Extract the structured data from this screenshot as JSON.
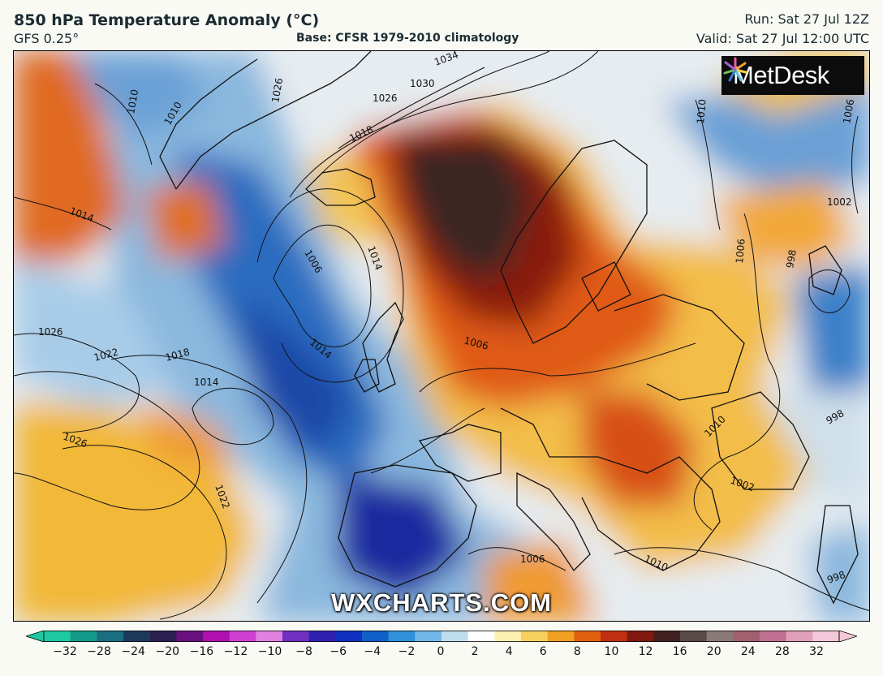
{
  "header": {
    "title": "850 hPa Temperature Anomaly (°C)",
    "model": "GFS 0.25°",
    "base": "Base: CFSR 1979-2010 climatology",
    "run": "Run: Sat 27 Jul 12Z",
    "valid": "Valid: Sat 27 Jul 12:00 UTC"
  },
  "logo": {
    "text": "MetDesk",
    "icon": "metdesk-star-icon"
  },
  "watermark": "WXCHARTS.COM",
  "isobar_labels": [
    "1034",
    "1030",
    "1026",
    "1018",
    "1010",
    "1006",
    "1014",
    "1026",
    "1010",
    "1006",
    "1010",
    "1002",
    "998",
    "1006",
    "1026",
    "1022",
    "1018",
    "1014",
    "1014",
    "1006",
    "1026",
    "1022",
    "1010",
    "1002",
    "1006",
    "1010",
    "998",
    "998",
    "1014"
  ],
  "colorbar": {
    "ticks": [
      "−32",
      "−28",
      "−24",
      "−20",
      "−16",
      "−12",
      "−10",
      "−8",
      "−6",
      "−4",
      "−2",
      "0",
      "2",
      "4",
      "6",
      "8",
      "10",
      "12",
      "16",
      "20",
      "24",
      "28",
      "32"
    ],
    "colors": [
      "#1ec8a0",
      "#159a8a",
      "#1a6e80",
      "#1e3a5a",
      "#2a2050",
      "#6a1080",
      "#b010b0",
      "#d040d0",
      "#e080e0",
      "#7030c0",
      "#3020b0",
      "#1030c0",
      "#1060c8",
      "#3090d8",
      "#70b8e8",
      "#c0dcef",
      "#ffffff",
      "#fcefb0",
      "#f8d060",
      "#f0a020",
      "#e06010",
      "#c03010",
      "#801810",
      "#402020",
      "#5a4a4a",
      "#8a7a7a",
      "#a06070",
      "#c07090",
      "#e0a0b8",
      "#f4c8d8"
    ]
  },
  "colors": {
    "cold_deep": "#1a2aa0",
    "cold": "#2a70c8",
    "cool": "#a8cce8",
    "neutral": "#eef2f4",
    "warm": "#f2c040",
    "hot": "#e05a10",
    "very_hot": "#8a1808",
    "extreme": "#3a2624"
  }
}
